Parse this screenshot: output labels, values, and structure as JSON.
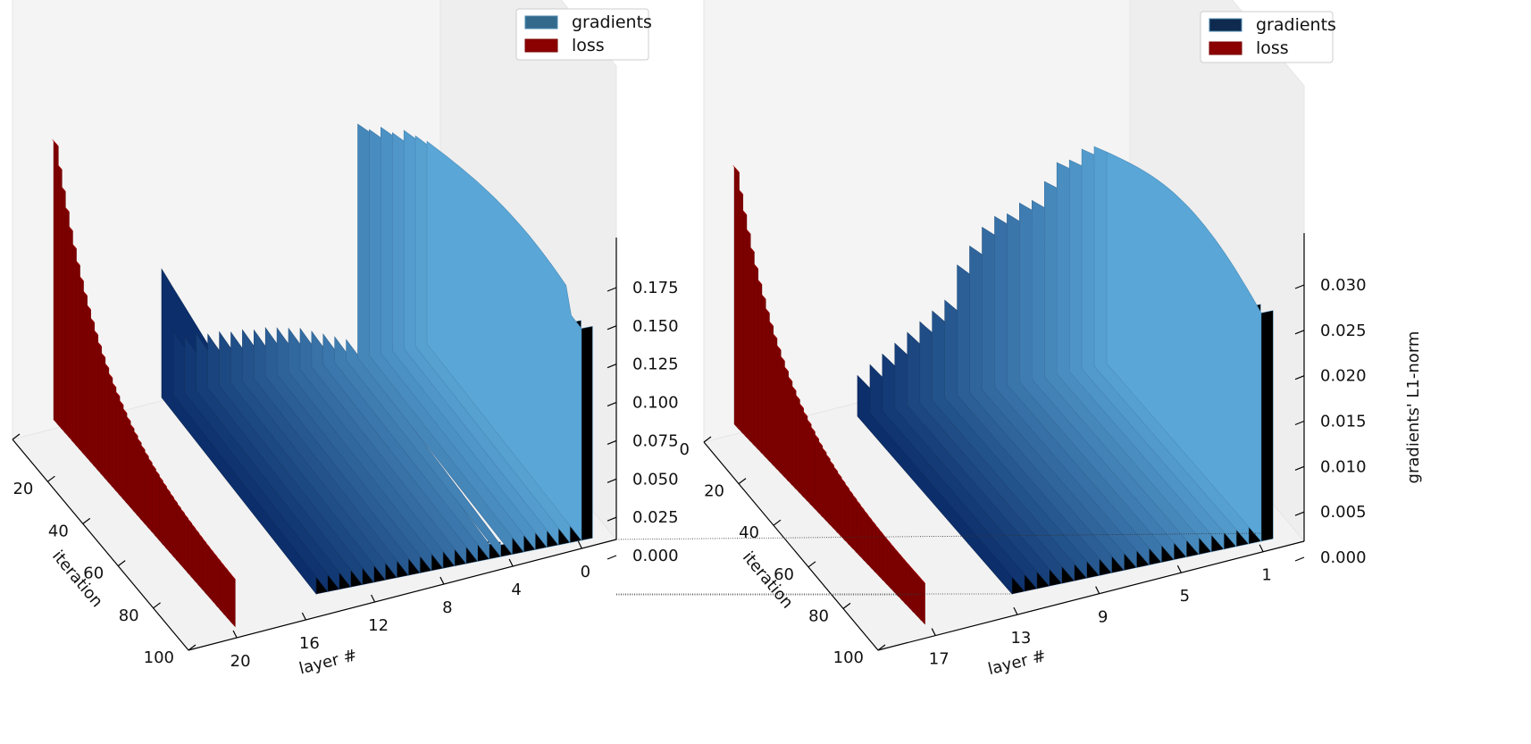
{
  "chart_data": [
    {
      "type": "bar3d",
      "xlabel": "iteration",
      "ylabel": "layer #",
      "zlabel": "",
      "x_ticks": [
        "0",
        "20",
        "40",
        "60",
        "80",
        "100"
      ],
      "y_ticks": [
        "20",
        "16",
        "12",
        "8",
        "4",
        "0"
      ],
      "z_ticks": [
        "0.000",
        "0.025",
        "0.050",
        "0.075",
        "0.100",
        "0.125",
        "0.150",
        "0.175"
      ],
      "xlim": [
        0,
        100
      ],
      "ylim": [
        0,
        24
      ],
      "zlim": [
        0,
        0.19
      ],
      "legend": {
        "placement": "top-center",
        "entries": [
          "gradients",
          "loss"
        ]
      },
      "colors": {
        "gradients": "#336a8c",
        "loss": "#8b0000"
      },
      "loss_curve": {
        "start": 0.19,
        "end": 0.03
      },
      "gradient_layers": [
        {
          "layer": 0,
          "peak": 0.13
        },
        {
          "layer": 1,
          "peak": 0.135
        },
        {
          "layer": 2,
          "peak": 0.14
        },
        {
          "layer": 3,
          "peak": 0.14
        },
        {
          "layer": 4,
          "peak": 0.145
        },
        {
          "layer": 5,
          "peak": 0.145
        },
        {
          "layer": 6,
          "peak": 0.15
        },
        {
          "layer": 7,
          "peak": 0.008
        },
        {
          "layer": 8,
          "peak": 0.01
        },
        {
          "layer": 9,
          "peak": 0.012
        },
        {
          "layer": 10,
          "peak": 0.014
        },
        {
          "layer": 11,
          "peak": 0.016
        },
        {
          "layer": 12,
          "peak": 0.017
        },
        {
          "layer": 13,
          "peak": 0.018
        },
        {
          "layer": 14,
          "peak": 0.019
        },
        {
          "layer": 15,
          "peak": 0.019
        },
        {
          "layer": 16,
          "peak": 0.02
        },
        {
          "layer": 17,
          "peak": 0.02
        },
        {
          "layer": 18,
          "peak": 0.021
        },
        {
          "layer": 19,
          "peak": 0.021
        },
        {
          "layer": 20,
          "peak": 0.022
        },
        {
          "layer": 21,
          "peak": 0.022
        },
        {
          "layer": 22,
          "peak": 0.025
        },
        {
          "layer": 23,
          "peak": 0.05
        }
      ]
    },
    {
      "type": "bar3d",
      "xlabel": "iteration",
      "ylabel": "layer #",
      "zlabel": "gradients' L1-norm",
      "x_ticks": [
        "0",
        "20",
        "40",
        "60",
        "80",
        "100"
      ],
      "y_ticks": [
        "17",
        "13",
        "9",
        "5",
        "1"
      ],
      "z_ticks": [
        "0.000",
        "0.005",
        "0.010",
        "0.015",
        "0.020",
        "0.025",
        "0.030"
      ],
      "xlim": [
        0,
        100
      ],
      "ylim": [
        0,
        21
      ],
      "zlim": [
        0,
        0.034
      ],
      "legend": {
        "placement": "top-right",
        "entries": [
          "gradients",
          "loss"
        ]
      },
      "colors": {
        "gradients": "#0f2a4e",
        "loss": "#8b0000"
      },
      "loss_curve": {
        "start": 0.034,
        "end": 0.005
      },
      "gradient_layers": [
        {
          "layer": 0,
          "peak": 0.026
        },
        {
          "layer": 1,
          "peak": 0.027
        },
        {
          "layer": 2,
          "peak": 0.027
        },
        {
          "layer": 3,
          "peak": 0.026
        },
        {
          "layer": 4,
          "peak": 0.026
        },
        {
          "layer": 5,
          "peak": 0.024
        },
        {
          "layer": 6,
          "peak": 0.022
        },
        {
          "layer": 7,
          "peak": 0.022
        },
        {
          "layer": 8,
          "peak": 0.021
        },
        {
          "layer": 9,
          "peak": 0.021
        },
        {
          "layer": 10,
          "peak": 0.02
        },
        {
          "layer": 11,
          "peak": 0.018
        },
        {
          "layer": 12,
          "peak": 0.016
        },
        {
          "layer": 13,
          "peak": 0.012
        },
        {
          "layer": 14,
          "peak": 0.011
        },
        {
          "layer": 15,
          "peak": 0.01
        },
        {
          "layer": 16,
          "peak": 0.009
        },
        {
          "layer": 17,
          "peak": 0.008
        },
        {
          "layer": 18,
          "peak": 0.007
        },
        {
          "layer": 19,
          "peak": 0.006
        },
        {
          "layer": 20,
          "peak": 0.005
        }
      ]
    }
  ]
}
